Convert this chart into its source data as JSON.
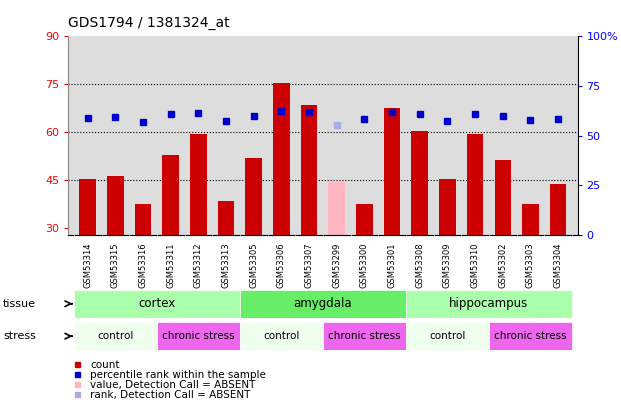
{
  "title": "GDS1794 / 1381324_at",
  "samples": [
    "GSM53314",
    "GSM53315",
    "GSM53316",
    "GSM53311",
    "GSM53312",
    "GSM53313",
    "GSM53305",
    "GSM53306",
    "GSM53307",
    "GSM53299",
    "GSM53300",
    "GSM53301",
    "GSM53308",
    "GSM53309",
    "GSM53310",
    "GSM53302",
    "GSM53303",
    "GSM53304"
  ],
  "bar_values": [
    45.5,
    46.5,
    37.5,
    53.0,
    59.5,
    38.5,
    52.0,
    75.5,
    68.5,
    44.5,
    37.5,
    67.5,
    60.5,
    45.5,
    59.5,
    51.5,
    37.5,
    44.0
  ],
  "bar_absent": [
    false,
    false,
    false,
    false,
    false,
    false,
    false,
    false,
    false,
    true,
    false,
    false,
    false,
    false,
    false,
    false,
    false,
    false
  ],
  "bar_color_normal": "#CC0000",
  "bar_color_absent": "#FFB6C1",
  "dot_values": [
    59.0,
    59.5,
    57.0,
    61.0,
    61.5,
    57.5,
    60.0,
    62.5,
    62.0,
    55.5,
    58.5,
    62.0,
    61.0,
    57.5,
    61.0,
    60.0,
    58.0,
    58.5
  ],
  "dot_absent": [
    false,
    false,
    false,
    false,
    false,
    false,
    false,
    false,
    false,
    true,
    false,
    false,
    false,
    false,
    false,
    false,
    false,
    false
  ],
  "dot_color_normal": "#0000CC",
  "dot_color_absent": "#AAAAEE",
  "ylim_left": [
    28,
    90
  ],
  "ylim_right": [
    0,
    100
  ],
  "yticks_left": [
    30,
    45,
    60,
    75,
    90
  ],
  "yticks_right": [
    0,
    25,
    50,
    75,
    100
  ],
  "ytick_labels_right": [
    "0",
    "25",
    "50",
    "75",
    "100%"
  ],
  "hlines": [
    45,
    60,
    75
  ],
  "tissue_groups": [
    {
      "label": "cortex",
      "start": 0,
      "end": 6,
      "color": "#AAFFAA"
    },
    {
      "label": "amygdala",
      "start": 6,
      "end": 12,
      "color": "#66EE66"
    },
    {
      "label": "hippocampus",
      "start": 12,
      "end": 18,
      "color": "#AAFFAA"
    }
  ],
  "stress_groups": [
    {
      "label": "control",
      "start": 0,
      "end": 3,
      "color": "#EEFFEE"
    },
    {
      "label": "chronic stress",
      "start": 3,
      "end": 6,
      "color": "#EE66EE"
    },
    {
      "label": "control",
      "start": 6,
      "end": 9,
      "color": "#EEFFEE"
    },
    {
      "label": "chronic stress",
      "start": 9,
      "end": 12,
      "color": "#EE66EE"
    },
    {
      "label": "control",
      "start": 12,
      "end": 15,
      "color": "#EEFFEE"
    },
    {
      "label": "chronic stress",
      "start": 15,
      "end": 18,
      "color": "#EE66EE"
    }
  ],
  "plot_bg": "#DDDDDD",
  "label_bg": "#CCCCCC",
  "legend_items": [
    {
      "label": "count",
      "color": "#CC0000"
    },
    {
      "label": "percentile rank within the sample",
      "color": "#0000CC"
    },
    {
      "label": "value, Detection Call = ABSENT",
      "color": "#FFB6C1"
    },
    {
      "label": "rank, Detection Call = ABSENT",
      "color": "#AAAADD"
    }
  ]
}
